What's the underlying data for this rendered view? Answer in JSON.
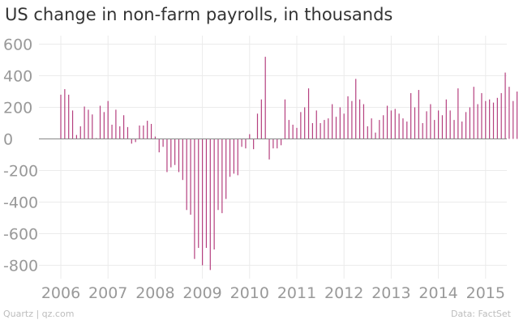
{
  "chart_data": {
    "type": "bar",
    "title": "US change in non-farm payrolls, in thousands",
    "xlabel": "",
    "ylabel": "",
    "ylim": [
      -850,
      650
    ],
    "yticks": [
      600,
      400,
      200,
      0,
      -200,
      -400,
      -600,
      -800
    ],
    "xticks": [
      "2006",
      "2007",
      "2008",
      "2009",
      "2010",
      "2011",
      "2012",
      "2013",
      "2014",
      "2015"
    ],
    "grid": true,
    "bar_color": "#b5407f",
    "start": "2005-01",
    "series": [
      {
        "values": [
          0,
          0,
          0,
          0,
          0,
          0,
          0,
          0,
          0,
          0,
          0,
          0,
          280,
          315,
          280,
          180,
          25,
          80,
          205,
          185,
          155,
          5,
          210,
          170,
          240,
          90,
          185,
          80,
          150,
          75,
          -30,
          -20,
          85,
          85,
          115,
          95,
          15,
          -85,
          -50,
          -210,
          -180,
          -165,
          -210,
          -260,
          -450,
          -480,
          -760,
          -690,
          -800,
          -690,
          -830,
          -700,
          -450,
          -470,
          -380,
          -240,
          -220,
          -230,
          -50,
          -60,
          30,
          -65,
          160,
          250,
          520,
          -130,
          -60,
          -60,
          -40,
          250,
          120,
          90,
          70,
          170,
          200,
          320,
          100,
          180,
          100,
          120,
          130,
          220,
          140,
          200,
          160,
          270,
          240,
          380,
          250,
          220,
          80,
          130,
          40,
          120,
          150,
          210,
          180,
          190,
          160,
          130,
          110,
          290,
          200,
          310,
          100,
          175,
          220,
          120,
          180,
          150,
          250,
          180,
          120,
          320,
          110,
          170,
          200,
          330,
          220,
          290,
          240,
          250,
          230,
          260,
          290,
          420,
          330,
          240,
          300,
          170,
          0,
          0
        ]
      }
    ]
  },
  "source_left": "Quartz | qz.com",
  "source_right": "Data: FactSet"
}
